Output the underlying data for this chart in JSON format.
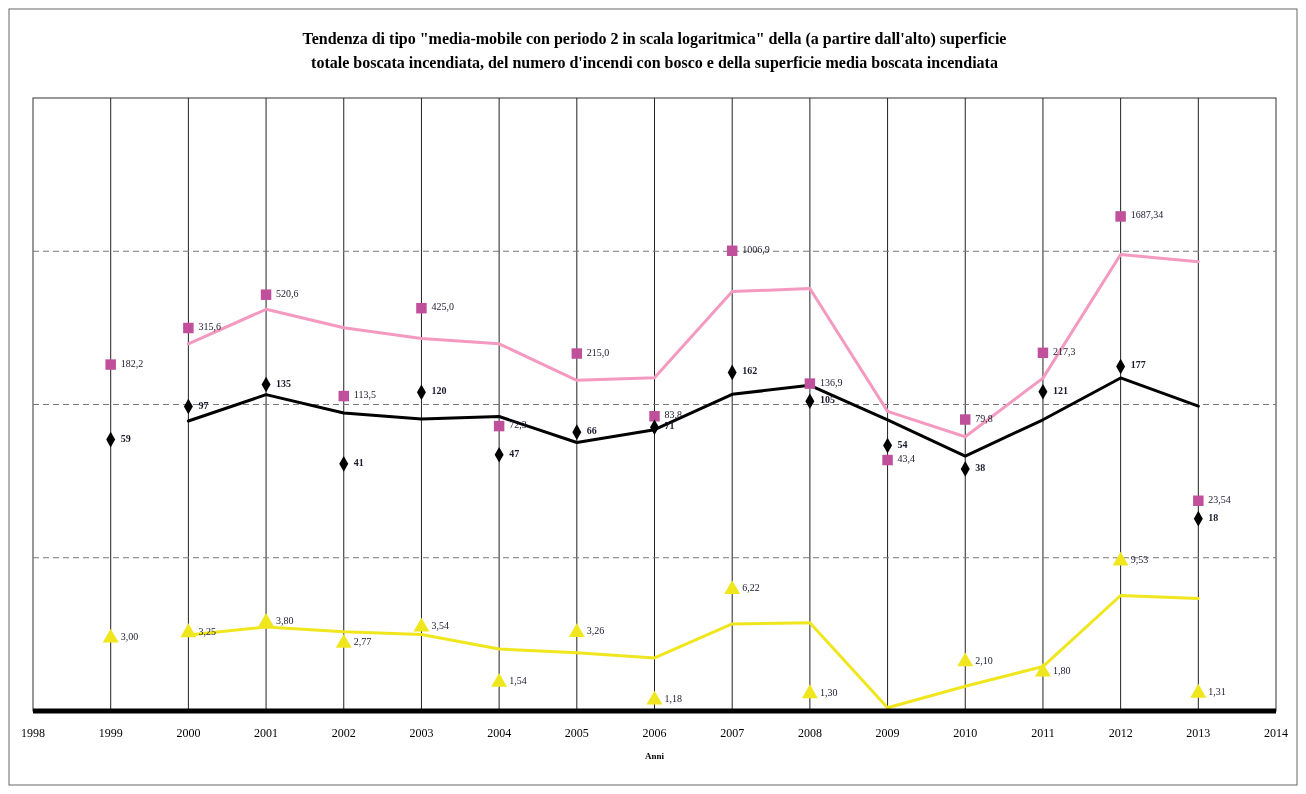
{
  "chart_data": {
    "type": "scatter",
    "title": "Tendenza di tipo \"media-mobile con periodo 2 in scala logaritmica\" della (a partire dall'alto) superficie totale boscata incendiata, del numero d'incendi con bosco e della superficie media boscata incendiata",
    "xlabel": "Anni",
    "x": [
      1999,
      2000,
      2001,
      2002,
      2003,
      2004,
      2005,
      2006,
      2007,
      2008,
      2009,
      2010,
      2011,
      2012,
      2013
    ],
    "xlim": [
      1998,
      2014
    ],
    "xticks": [
      1998,
      1999,
      2000,
      2001,
      2002,
      2003,
      2004,
      2005,
      2006,
      2007,
      2008,
      2009,
      2010,
      2011,
      2012,
      2013,
      2014
    ],
    "log": true,
    "ylim": [
      1,
      10000
    ],
    "yticks": [
      {
        "value": 1,
        "label": null
      },
      {
        "value": 10,
        "label": null
      },
      {
        "value": 100,
        "label": null
      },
      {
        "value": 1000,
        "label": null
      },
      {
        "value": 10000,
        "label": null
      }
    ],
    "tick_labels": "x",
    "grid": true,
    "series": [
      {
        "type": "line",
        "color": "#f49ac1",
        "marker": "none",
        "x": [
          2000,
          2001,
          2002,
          2003,
          2004,
          2005,
          2006,
          2007,
          2008,
          2009,
          2010,
          2011,
          2012,
          2013
        ],
        "values": [
          248.9,
          418.1,
          317.05,
          269.25,
          248.75,
          143.8,
          149.4,
          545.35,
          571.9,
          90.15,
          61.6,
          148.55,
          952.3,
          855.44
        ]
      },
      {
        "type": "line",
        "color": "#000000",
        "marker": "none",
        "x": [
          2000,
          2001,
          2002,
          2003,
          2004,
          2005,
          2006,
          2007,
          2008,
          2009,
          2010,
          2011,
          2012,
          2013
        ],
        "values": [
          78,
          116,
          88,
          80.5,
          83.5,
          56.5,
          68.5,
          116.5,
          133.5,
          79.5,
          46,
          79.5,
          149,
          97.5
        ]
      },
      {
        "type": "line",
        "color": "#f0e61e",
        "marker": "none",
        "x": [
          2000,
          2001,
          2002,
          2003,
          2004,
          2005,
          2006,
          2007,
          2008,
          2009,
          2010,
          2011,
          2012,
          2013
        ],
        "values": [
          3.13,
          3.53,
          3.29,
          3.16,
          2.54,
          2.4,
          2.22,
          3.7,
          3.76,
          1.05,
          1.45,
          1.95,
          5.67,
          5.42
        ]
      },
      {
        "color": "#c0509c",
        "marker": "square",
        "values": [
          182.2,
          315.6,
          520.6,
          113.5,
          425.0,
          72.3,
          215.0,
          83.8,
          1006.9,
          136.9,
          43.4,
          79.8,
          217.3,
          1687.34,
          23.54
        ],
        "value_labels": [
          "182,2",
          "315,6",
          "520,6",
          "113,5",
          "425,0",
          "72,3",
          "215,0",
          "83,8",
          "1006,9",
          "136,9",
          "43,4",
          "79,8",
          "217,3",
          "1687,34",
          "23,54"
        ]
      },
      {
        "color": "#000000",
        "marker": "diamond",
        "values": [
          59,
          97,
          135,
          41,
          120,
          47,
          66,
          71,
          162,
          105,
          54,
          38,
          121,
          177,
          18
        ],
        "value_labels": [
          "59",
          "97",
          "135",
          "41",
          "120",
          "47",
          "66",
          "71",
          "162",
          "105",
          "54",
          "38",
          "121",
          "177",
          "18"
        ]
      },
      {
        "color": "#f0e61e",
        "marker": "triangle",
        "values": [
          3.0,
          3.25,
          3.8,
          2.77,
          3.54,
          1.54,
          3.26,
          1.18,
          6.22,
          1.3,
          null,
          2.1,
          1.8,
          9.53,
          1.31
        ],
        "value_labels": [
          "3,00",
          "3,25",
          "3,80",
          "2,77",
          "3,54",
          "1,54",
          "3,26",
          "1,18",
          "6,22",
          "1,30",
          null,
          "2,10",
          "1,80",
          "9,53",
          "1,31"
        ]
      }
    ]
  }
}
